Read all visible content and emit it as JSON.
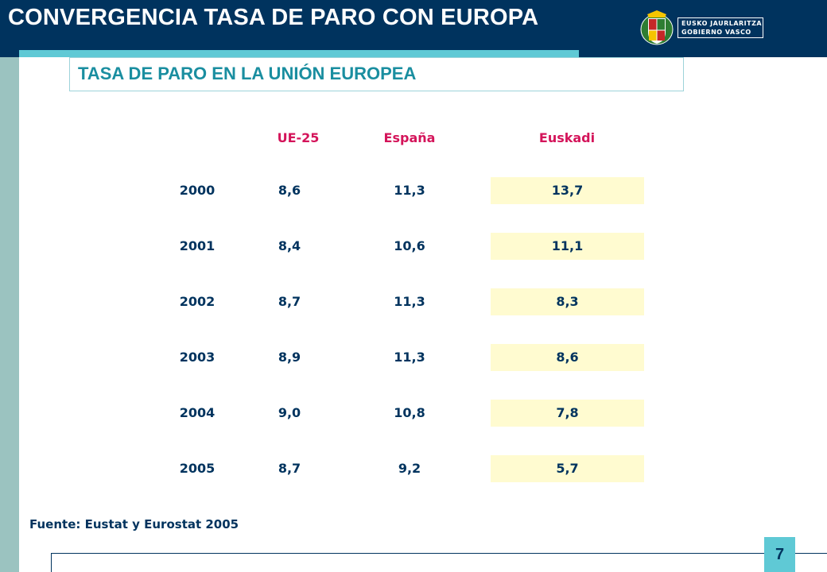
{
  "header": {
    "title": "CONVERGENCIA TASA DE PARO CON EUROPA",
    "logo": {
      "line1": "EUSKO JAURLARITZA",
      "line2": "GOBIERNO VASCO"
    }
  },
  "subtitle": "TASA DE PARO EN LA UNIÓN EUROPEA",
  "table": {
    "columns": [
      "UE-25",
      "España",
      "Euskadi"
    ],
    "rows": [
      {
        "year": "2000",
        "ue25": "8,6",
        "espana": "11,3",
        "euskadi": "13,7"
      },
      {
        "year": "2001",
        "ue25": "8,4",
        "espana": "10,6",
        "euskadi": "11,1"
      },
      {
        "year": "2002",
        "ue25": "8,7",
        "espana": "11,3",
        "euskadi": "8,3"
      },
      {
        "year": "2003",
        "ue25": "8,9",
        "espana": "11,3",
        "euskadi": "8,6"
      },
      {
        "year": "2004",
        "ue25": "9,0",
        "espana": "10,8",
        "euskadi": "7,8"
      },
      {
        "year": "2005",
        "ue25": "8,7",
        "espana": "9,2",
        "euskadi": "5,7"
      }
    ]
  },
  "source": "Fuente: Eustat y Eurostat 2005",
  "page_number": "7",
  "colors": {
    "header_bg": "#00335e",
    "accent": "#5fc9d5",
    "column_head": "#d4145a",
    "highlight": "#fffbd0"
  }
}
